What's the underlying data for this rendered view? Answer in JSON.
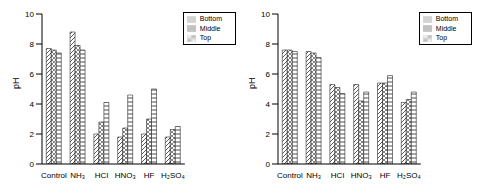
{
  "chart_data": [
    {
      "type": "bar",
      "ylabel": "pH",
      "categories": [
        "Control",
        "NH₃",
        "HCl",
        "HNO₃",
        "HF",
        "H₂SO₄"
      ],
      "ylim": [
        0,
        10
      ],
      "yticks": [
        0,
        2,
        4,
        6,
        8,
        10
      ],
      "legend": "upper right",
      "series": [
        {
          "name": "Top",
          "color": "#333333",
          "values": [
            7.7,
            8.8,
            2.0,
            1.8,
            2.0,
            1.8
          ]
        },
        {
          "name": "Middle",
          "color": "#666666",
          "values": [
            7.6,
            7.9,
            2.8,
            2.4,
            3.0,
            2.3
          ]
        },
        {
          "name": "Bottom",
          "color": "#222222",
          "values": [
            7.4,
            7.6,
            4.1,
            4.6,
            5.0,
            2.5
          ]
        }
      ]
    },
    {
      "type": "bar",
      "ylabel": "pH",
      "categories": [
        "Control",
        "NH₃",
        "HCl",
        "HNO₃",
        "HF",
        "H₂SO₄"
      ],
      "ylim": [
        0,
        10
      ],
      "yticks": [
        0,
        2,
        4,
        6,
        8,
        10
      ],
      "legend": "upper right",
      "series": [
        {
          "name": "Top",
          "color": "#333333",
          "values": [
            7.6,
            7.5,
            5.3,
            5.3,
            5.4,
            4.1
          ]
        },
        {
          "name": "Middle",
          "color": "#666666",
          "values": [
            7.6,
            7.4,
            5.1,
            4.2,
            5.4,
            4.3
          ]
        },
        {
          "name": "Bottom",
          "color": "#222222",
          "values": [
            7.5,
            7.1,
            4.7,
            4.8,
            5.9,
            4.8
          ]
        }
      ]
    }
  ]
}
